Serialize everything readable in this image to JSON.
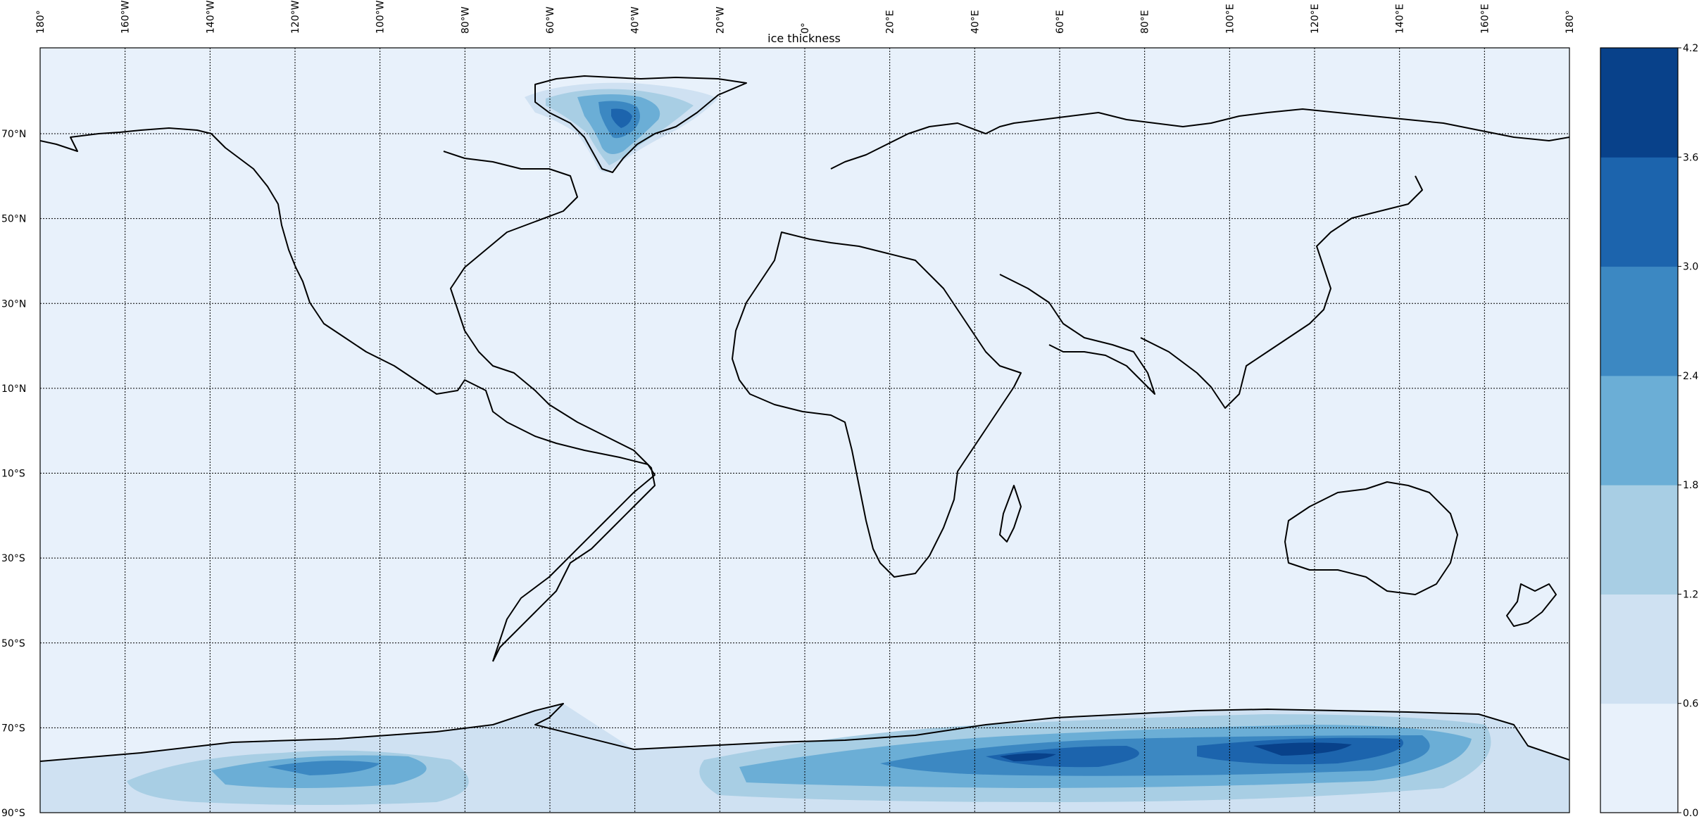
{
  "map": {
    "title": "ice thickness",
    "background_color": "#e8f1fb",
    "longitude_labels": [
      "180°",
      "160°W",
      "140°W",
      "120°W",
      "100°W",
      "80°W",
      "60°W",
      "40°W",
      "20°W",
      "0°",
      "20°E",
      "40°E",
      "60°E",
      "80°E",
      "100°E",
      "120°E",
      "140°E",
      "160°E",
      "180°"
    ],
    "latitude_labels": [
      "70°N",
      "50°N",
      "30°N",
      "10°N",
      "10°S",
      "30°S",
      "50°S",
      "70°S",
      "90°S"
    ],
    "ice_regions": [
      "Greenland",
      "Antarctica"
    ]
  },
  "colorbar": {
    "ticks": [
      "0.0",
      "0.6",
      "1.2",
      "1.8",
      "2.4",
      "3.0",
      "3.6",
      "4.2"
    ],
    "colors": [
      "#e8f1fb",
      "#cfe1f2",
      "#a8cee4",
      "#6baed6",
      "#3c88c2",
      "#1c64ad",
      "#08418a"
    ]
  }
}
